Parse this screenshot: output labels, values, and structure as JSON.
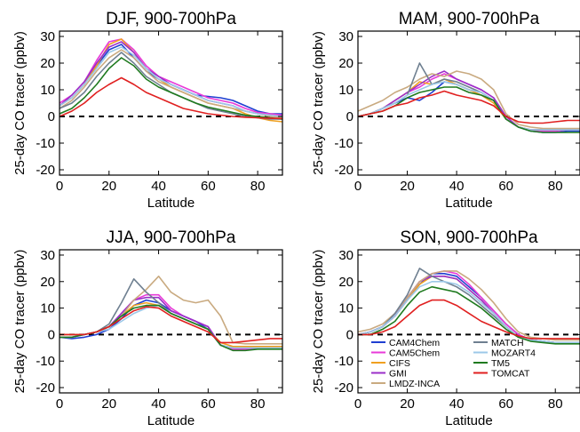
{
  "legend": {
    "entries": [
      {
        "name": "CAM4Chem",
        "color": "#1f3fd1"
      },
      {
        "name": "CAM5Chem",
        "color": "#e83ad8"
      },
      {
        "name": "CIFS",
        "color": "#f0a020"
      },
      {
        "name": "GMI",
        "color": "#9b2fc9"
      },
      {
        "name": "LMDZ-INCA",
        "color": "#c9aa80"
      },
      {
        "name": "MATCH",
        "color": "#6e7f90"
      },
      {
        "name": "MOZART4",
        "color": "#9cc8e8"
      },
      {
        "name": "TM5",
        "color": "#1f7a1f"
      },
      {
        "name": "TOMCAT",
        "color": "#e02020"
      }
    ]
  },
  "chart_data": [
    {
      "type": "line",
      "title": "DJF, 900-700hPa",
      "xlabel": "Latitude",
      "ylabel": "25-day CO tracer (ppbv)",
      "xlim": [
        0,
        90
      ],
      "ylim": [
        -22,
        32
      ],
      "xticks": [
        0,
        20,
        40,
        60,
        80
      ],
      "yticks": [
        -20,
        -10,
        0,
        10,
        20,
        30
      ],
      "zero_line": "dashed",
      "x": [
        0,
        5,
        10,
        15,
        20,
        25,
        30,
        35,
        40,
        45,
        50,
        55,
        60,
        65,
        70,
        75,
        80,
        85,
        90
      ],
      "series": [
        {
          "name": "CAM4Chem",
          "values": [
            4,
            7,
            12,
            19,
            25,
            27,
            22,
            17,
            14,
            12,
            10,
            8,
            7.5,
            7,
            6,
            4,
            2,
            1,
            1
          ]
        },
        {
          "name": "CAM5Chem",
          "values": [
            5,
            8,
            13,
            21,
            28,
            29,
            25,
            19,
            15,
            13,
            11,
            9,
            7,
            6,
            5,
            3,
            1.5,
            1,
            0.5
          ]
        },
        {
          "name": "CIFS",
          "values": [
            4,
            7,
            12,
            19,
            27,
            29,
            24,
            18,
            14,
            11,
            9,
            7,
            5,
            4,
            3,
            1,
            -0.5,
            -1.5,
            -2
          ]
        },
        {
          "name": "GMI",
          "values": [
            4,
            8,
            13,
            20,
            26,
            28,
            24,
            18,
            15,
            12,
            10,
            8,
            6,
            5,
            4,
            2,
            1,
            0.5,
            0
          ]
        },
        {
          "name": "LMDZ-INCA",
          "values": [
            3,
            6,
            11,
            17,
            22,
            25,
            22,
            17,
            13,
            11,
            9,
            7,
            5,
            4,
            3,
            2,
            1,
            0,
            -0.5
          ]
        },
        {
          "name": "MATCH",
          "values": [
            3,
            5,
            9,
            15,
            20,
            24,
            20,
            15,
            12,
            9,
            7,
            5,
            3,
            2,
            1,
            0,
            -0.5,
            -1,
            -1
          ]
        },
        {
          "name": "MOZART4",
          "values": [
            4,
            7,
            12,
            18,
            24,
            26,
            23,
            18,
            14,
            12,
            10,
            8,
            6,
            5,
            4,
            2,
            1,
            0.5,
            0
          ]
        },
        {
          "name": "TM5",
          "values": [
            1,
            3,
            7,
            12,
            18,
            22,
            19,
            14,
            11,
            9,
            7,
            5,
            3.5,
            2.5,
            1.5,
            0.5,
            0,
            -0.5,
            -1
          ]
        },
        {
          "name": "TOMCAT",
          "values": [
            0,
            2,
            5,
            9,
            12,
            14.5,
            12,
            9,
            7,
            5,
            3,
            2,
            1,
            0.5,
            0,
            -0.3,
            -0.5,
            -0.7,
            -0.8
          ]
        }
      ]
    },
    {
      "type": "line",
      "title": "MAM, 900-700hPa",
      "xlabel": "Latitude",
      "ylabel": "25-day CO tracer (ppbv)",
      "xlim": [
        0,
        90
      ],
      "ylim": [
        -22,
        32
      ],
      "xticks": [
        0,
        20,
        40,
        60,
        80
      ],
      "yticks": [
        -20,
        -10,
        0,
        10,
        20,
        30
      ],
      "zero_line": "dashed",
      "x": [
        0,
        5,
        10,
        15,
        20,
        25,
        30,
        35,
        40,
        45,
        50,
        55,
        60,
        65,
        70,
        75,
        80,
        85,
        90
      ],
      "series": [
        {
          "name": "CAM4Chem",
          "values": [
            0,
            1,
            3,
            5,
            7,
            6,
            9,
            13,
            12,
            10,
            9,
            6,
            -1,
            -4,
            -5.5,
            -6,
            -6,
            -5.5,
            -5.5
          ]
        },
        {
          "name": "CAM5Chem",
          "values": [
            0,
            1,
            3,
            6,
            9,
            11,
            14,
            16,
            14,
            12,
            10,
            7,
            -1,
            -4,
            -5,
            -5.5,
            -5.5,
            -5,
            -5
          ]
        },
        {
          "name": "CIFS",
          "values": [
            0,
            1,
            3,
            6,
            9,
            13,
            12,
            14,
            12,
            10,
            8,
            5,
            -1,
            -4,
            -5,
            -5,
            -5,
            -5,
            -5
          ]
        },
        {
          "name": "GMI",
          "values": [
            0,
            1,
            3,
            6,
            9,
            12,
            15,
            17,
            14,
            12,
            10,
            7,
            0,
            -4,
            -5,
            -5,
            -5,
            -5,
            -5
          ]
        },
        {
          "name": "LMDZ-INCA",
          "values": [
            2,
            4,
            6,
            9,
            11,
            14,
            16,
            15,
            17,
            16,
            14,
            10,
            1,
            -3,
            -4,
            -4.5,
            -4.5,
            -4.5,
            -4.5
          ]
        },
        {
          "name": "MATCH",
          "values": [
            0,
            1,
            3,
            5,
            8,
            20,
            12,
            14,
            13,
            11,
            9,
            6,
            -1,
            -4,
            -5,
            -5,
            -5,
            -5,
            -5
          ]
        },
        {
          "name": "MOZART4",
          "values": [
            0,
            1,
            3,
            5,
            8,
            10,
            12,
            13,
            12,
            10,
            9,
            6,
            -1,
            -4,
            -5,
            -5,
            -5,
            -5,
            -5
          ]
        },
        {
          "name": "TM5",
          "values": [
            0,
            1,
            2,
            4,
            7,
            9,
            10,
            11,
            11,
            9,
            8,
            6,
            -1,
            -4,
            -5.5,
            -6,
            -6,
            -6,
            -6
          ]
        },
        {
          "name": "TOMCAT",
          "values": [
            0,
            1,
            2,
            4,
            5,
            7,
            8,
            9.5,
            8,
            7,
            6,
            4,
            0,
            -2,
            -2.5,
            -2.5,
            -2,
            -1.5,
            -1.5
          ]
        }
      ]
    },
    {
      "type": "line",
      "title": "JJA, 900-700hPa",
      "xlabel": "Latitude",
      "ylabel": "25-day CO tracer (ppbv)",
      "xlim": [
        0,
        90
      ],
      "ylim": [
        -22,
        32
      ],
      "xticks": [
        0,
        20,
        40,
        60,
        80
      ],
      "yticks": [
        -20,
        -10,
        0,
        10,
        20,
        30
      ],
      "zero_line": "dashed",
      "x": [
        0,
        5,
        10,
        15,
        20,
        25,
        30,
        35,
        40,
        45,
        50,
        55,
        60,
        65,
        70,
        75,
        80,
        85,
        90
      ],
      "series": [
        {
          "name": "CAM4Chem",
          "values": [
            -1,
            -1.5,
            -1,
            0,
            2,
            6,
            11,
            13,
            12,
            9,
            7,
            5,
            2,
            -4,
            -5.5,
            -5.5,
            -5,
            -4.5,
            -4.5
          ]
        },
        {
          "name": "CAM5Chem",
          "values": [
            -1,
            -1,
            0,
            1,
            3,
            8,
            13,
            15,
            15,
            10,
            7,
            5,
            3,
            -4,
            -5.5,
            -5.5,
            -5,
            -5,
            -5
          ]
        },
        {
          "name": "CIFS",
          "values": [
            0,
            0,
            0,
            1,
            3,
            7,
            11,
            12,
            11,
            8,
            6,
            4,
            2,
            -3,
            -4.5,
            -4.5,
            -4.5,
            -4.5,
            -4.5
          ]
        },
        {
          "name": "GMI",
          "values": [
            -1,
            -1,
            0,
            1,
            3,
            8,
            13,
            14,
            14,
            9,
            7,
            5,
            3,
            -4,
            -5,
            -5,
            -5,
            -5,
            -5
          ]
        },
        {
          "name": "LMDZ-INCA",
          "values": [
            0,
            0,
            0,
            1,
            3,
            7,
            13,
            17,
            22,
            16,
            13,
            12,
            13,
            7,
            -3,
            -3.5,
            -3.5,
            -3.5,
            -3.5
          ]
        },
        {
          "name": "MATCH",
          "values": [
            -1,
            -1,
            0,
            1,
            4,
            12,
            21,
            16,
            12,
            8,
            6,
            4,
            2,
            -4,
            -5,
            -5,
            -5,
            -5,
            -5
          ]
        },
        {
          "name": "MOZART4",
          "values": [
            -1,
            -1,
            0,
            1,
            2,
            5,
            8,
            10,
            11,
            8,
            6,
            4,
            2,
            -4,
            -5,
            -5,
            -5,
            -5,
            -5
          ]
        },
        {
          "name": "TM5",
          "values": [
            -1,
            -1,
            0,
            1,
            3,
            7,
            10,
            11,
            11,
            8,
            6,
            4,
            2,
            -4,
            -6,
            -6,
            -5.5,
            -5.5,
            -5.5
          ]
        },
        {
          "name": "TOMCAT",
          "values": [
            0,
            0,
            0,
            1,
            3,
            6,
            9,
            10.5,
            10,
            7,
            5,
            3,
            1,
            -3,
            -3,
            -2.5,
            -2,
            -1.5,
            -1.5
          ]
        }
      ]
    },
    {
      "type": "line",
      "title": "SON, 900-700hPa",
      "xlabel": "Latitude",
      "ylabel": "25-day CO tracer (ppbv)",
      "xlim": [
        0,
        90
      ],
      "ylim": [
        -22,
        32
      ],
      "xticks": [
        0,
        20,
        40,
        60,
        80
      ],
      "yticks": [
        -20,
        -10,
        0,
        10,
        20,
        30
      ],
      "zero_line": "dashed",
      "x": [
        0,
        5,
        10,
        15,
        20,
        25,
        30,
        35,
        40,
        45,
        50,
        55,
        60,
        65,
        70,
        75,
        80,
        85,
        90
      ],
      "series": [
        {
          "name": "CAM4Chem",
          "values": [
            0,
            1,
            3,
            7,
            13,
            19,
            23,
            23,
            22,
            18,
            14,
            9,
            4,
            0,
            -2,
            -2.5,
            -3,
            -3,
            -3
          ]
        },
        {
          "name": "CAM5Chem",
          "values": [
            0,
            1,
            3,
            7,
            14,
            20,
            23,
            24,
            23,
            19,
            14,
            9,
            4,
            0,
            -2,
            -2.5,
            -3,
            -3,
            -3
          ]
        },
        {
          "name": "CIFS",
          "values": [
            0,
            1,
            3,
            7,
            13,
            19,
            22,
            22,
            21,
            17,
            13,
            8,
            3,
            -1,
            -2,
            -2.5,
            -3,
            -3,
            -3
          ]
        },
        {
          "name": "GMI",
          "values": [
            0,
            1,
            3,
            7,
            14,
            20,
            22,
            22,
            21,
            17,
            13,
            8,
            3,
            -1,
            -2,
            -2.5,
            -3,
            -3,
            -3
          ]
        },
        {
          "name": "LMDZ-INCA",
          "values": [
            1,
            2,
            4,
            8,
            14,
            20,
            23,
            24,
            24,
            21,
            17,
            12,
            6,
            1,
            -1,
            -1.5,
            -2,
            -2,
            -2
          ]
        },
        {
          "name": "MATCH",
          "values": [
            0,
            1,
            3,
            8,
            15,
            25,
            22,
            20,
            18,
            15,
            11,
            7,
            3,
            -1,
            -2,
            -2.5,
            -3,
            -3,
            -3
          ]
        },
        {
          "name": "MOZART4",
          "values": [
            0,
            1,
            3,
            7,
            13,
            18,
            20,
            20,
            19,
            16,
            12,
            8,
            3,
            -1,
            -2,
            -2.5,
            -3,
            -3,
            -3
          ]
        },
        {
          "name": "TM5",
          "values": [
            0,
            0,
            2,
            5,
            11,
            16,
            18,
            17,
            16,
            13,
            10,
            6,
            2,
            -1,
            -2.5,
            -3,
            -3.5,
            -3.5,
            -3.5
          ]
        },
        {
          "name": "TOMCAT",
          "values": [
            0,
            0,
            1,
            3,
            7,
            11,
            13,
            13,
            11,
            8,
            5,
            3,
            1,
            -0.5,
            -1.5,
            -1.5,
            -1.5,
            -1.5,
            -1.5
          ]
        }
      ]
    }
  ]
}
